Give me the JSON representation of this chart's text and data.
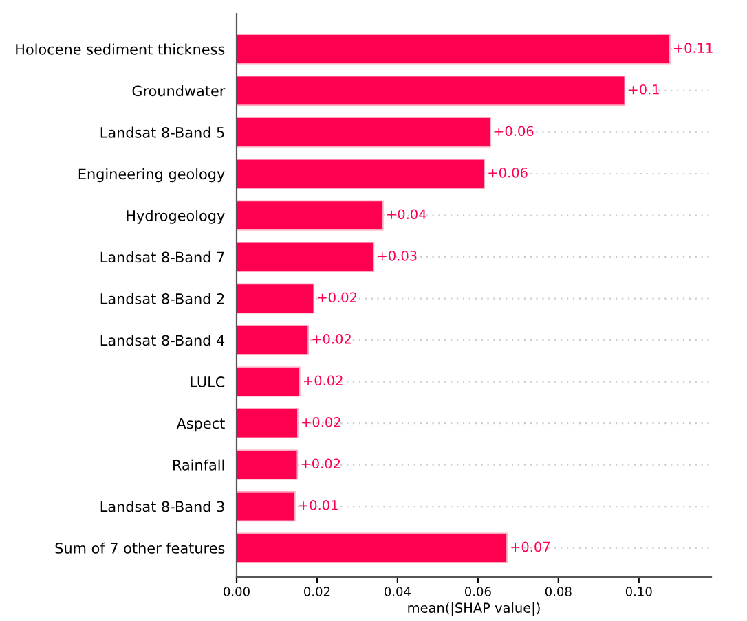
{
  "chart_data": {
    "type": "bar",
    "orientation": "horizontal",
    "xlabel": "mean(|SHAP value|)",
    "categories": [
      "Holocene sediment thickness",
      "Groundwater",
      "Landsat 8-Band 5",
      "Engineering geology",
      "Hydrogeology",
      "Landsat 8-Band 7",
      "Landsat 8-Band 2",
      "Landsat 8-Band 4",
      "LULC",
      "Aspect",
      "Rainfall",
      "Landsat 8-Band 3",
      "Sum of 7 other features"
    ],
    "values": [
      0.1077,
      0.0965,
      0.0631,
      0.0616,
      0.0364,
      0.0341,
      0.0192,
      0.0178,
      0.0157,
      0.0152,
      0.0151,
      0.0145,
      0.0672
    ],
    "value_labels": [
      "+0.11",
      "+0.1",
      "+0.06",
      "+0.06",
      "+0.04",
      "+0.03",
      "+0.02",
      "+0.02",
      "+0.02",
      "+0.02",
      "+0.02",
      "+0.01",
      "+0.07"
    ],
    "color": "#ff0051",
    "xlim": [
      0,
      0.118
    ],
    "xticks": [
      {
        "value": 0,
        "label": "0.00"
      },
      {
        "value": 0.02,
        "label": "0.02"
      },
      {
        "value": 0.04,
        "label": "0.04"
      },
      {
        "value": 0.06,
        "label": "0.06"
      },
      {
        "value": 0.08,
        "label": "0.08"
      },
      {
        "value": 0.1,
        "label": "0.10"
      }
    ],
    "grid": "y"
  }
}
